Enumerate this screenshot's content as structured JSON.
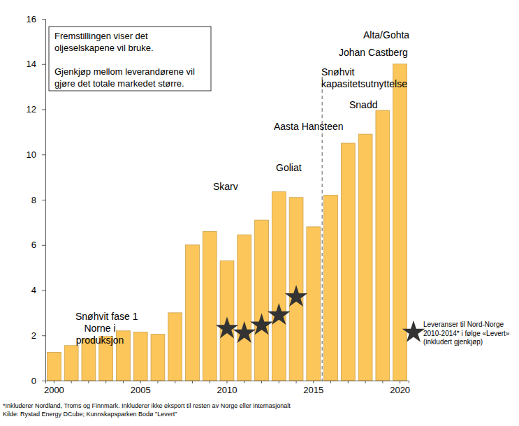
{
  "chart_data": {
    "type": "bar",
    "categories": [
      "2000",
      null,
      null,
      null,
      null,
      "2005",
      null,
      null,
      null,
      null,
      "2010",
      null,
      null,
      null,
      null,
      "2015",
      null,
      null,
      null,
      null,
      "2020"
    ],
    "series": [
      {
        "type": "bar",
        "color": "#fcc65a",
        "values": [
          1.25,
          1.55,
          1.85,
          1.95,
          2.2,
          2.15,
          2.05,
          3.0,
          6.0,
          6.6,
          5.3,
          6.45,
          7.1,
          8.35,
          8.1,
          6.8,
          8.2,
          10.5,
          10.9,
          11.95,
          14.0
        ]
      },
      {
        "type": "scatter",
        "marker": "star",
        "color": "#333333",
        "name": "Leveranser  til Nord-Norge 2010-2014*  i følge «Levert» (inkludert gjenkjøp)",
        "values": [
          null,
          null,
          null,
          null,
          null,
          null,
          null,
          null,
          null,
          null,
          2.3,
          2.1,
          2.45,
          2.9,
          3.7,
          null,
          null,
          null,
          null,
          null,
          null
        ]
      }
    ],
    "ylim": [
      0,
      16
    ],
    "yticks": [
      0,
      2,
      4,
      6,
      8,
      10,
      12,
      14,
      16
    ],
    "grid": false,
    "legend": "right",
    "annotations": [
      [
        "Snøhvit fase 1"
      ],
      [
        "Norne i",
        "produksjon"
      ],
      [
        "Skarv"
      ],
      [
        "Goliat"
      ],
      [
        "Aasta Hansteen"
      ],
      [
        "Snøhvit",
        "kapasitetsutnyttelse"
      ],
      [
        "Snadd"
      ],
      [
        "Johan Castberg"
      ],
      [
        "Alta/Gohta"
      ]
    ],
    "text_box": [
      [
        "Fremstillingen viser det",
        "oljeselskapene vil bruke."
      ],
      [
        "Gjenkjøp mellom leverandørene vil",
        "gjøre det totale markedet større."
      ]
    ],
    "footnotes": [
      "*Inkluderer Nordland, Troms og Finnmark. Inkluderer ikke eksport til resten av Norge eller internasjonalt",
      "Kilde: Rystad Energy DCube; Kunnskapsparken  Bodø \"Levert\""
    ]
  }
}
